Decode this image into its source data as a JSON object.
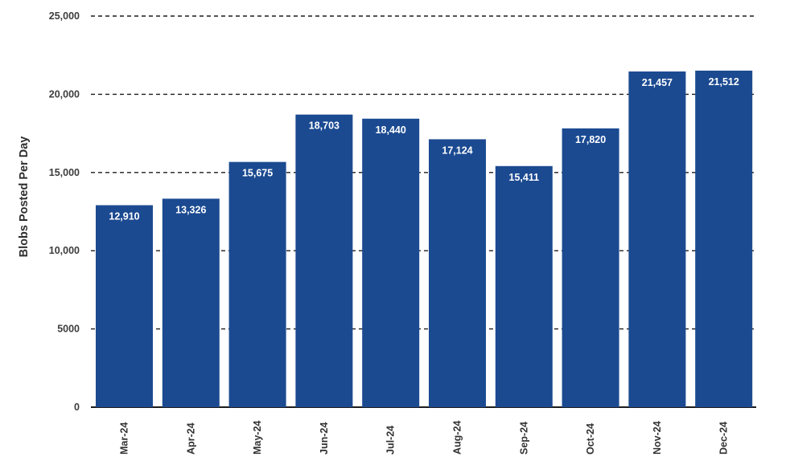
{
  "chart_data": {
    "type": "bar",
    "title": "",
    "xlabel": "",
    "ylabel": "Blobs Posted Per Day",
    "categories": [
      "Mar-24",
      "Apr-24",
      "May-24",
      "Jun-24",
      "Jul-24",
      "Aug-24",
      "Sep-24",
      "Oct-24",
      "Nov-24",
      "Dec-24"
    ],
    "values": [
      12910,
      13326,
      15675,
      18703,
      18440,
      17124,
      15411,
      17820,
      21457,
      21512
    ],
    "value_labels": [
      "12,910",
      "13,326",
      "15,675",
      "18,703",
      "18,440",
      "17,124",
      "15,411",
      "17,820",
      "21,457",
      "21,512"
    ],
    "ylim": [
      0,
      25000
    ],
    "y_ticks": [
      {
        "value": 0,
        "label": "0"
      },
      {
        "value": 5000,
        "label": "5000"
      },
      {
        "value": 10000,
        "label": "10,000"
      },
      {
        "value": 15000,
        "label": "15,000"
      },
      {
        "value": 20000,
        "label": "20,000"
      },
      {
        "value": 25000,
        "label": "25,000"
      }
    ],
    "grid": "horizontal-dashed",
    "legend": "none",
    "colors": {
      "bar": "#1b4a91",
      "value_label": "#ffffff",
      "y_tick_text": "#3d3d3d",
      "x_tick_text": "#333333",
      "gridline": "#1c1c1c",
      "axis_line": "#1c1c1c",
      "background": "#ffffff"
    }
  }
}
